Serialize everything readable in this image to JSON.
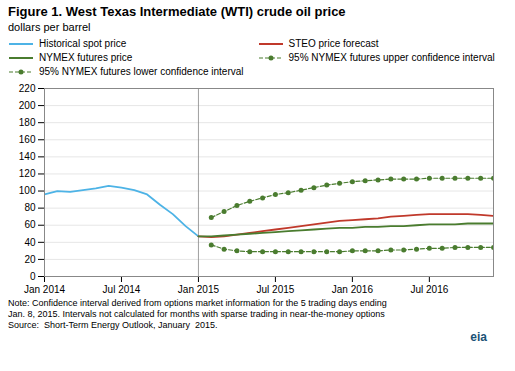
{
  "chart_data": {
    "type": "line",
    "title": "Figure 1. West Texas Intermediate (WTI) crude oil price",
    "subtitle": "dollars per barrel",
    "note": "Note: Confidence interval derived from options market information for the 5 trading days ending\nJan. 8, 2015. Intervals not calculated for months with sparse trading in near-the-money options\nSource:  Short-Term Energy Outlook, January  2015.",
    "annotations": [
      {
        "text": "eia",
        "color": "#1a5276"
      }
    ],
    "x": [
      0,
      1,
      2,
      3,
      4,
      5,
      6,
      7,
      8,
      9,
      10,
      11,
      12,
      13,
      14,
      15,
      16,
      17,
      18,
      19,
      20,
      21,
      22,
      23,
      24,
      25,
      26,
      27,
      28,
      29,
      30,
      31,
      32,
      33,
      34,
      35
    ],
    "series": [
      {
        "name": "Historical spot price",
        "color": "#4db3e6",
        "line_style": "solid",
        "values": [
          96,
          100,
          99,
          101,
          103,
          106,
          104,
          101,
          96,
          84,
          73,
          59,
          47,
          null,
          null,
          null,
          null,
          null,
          null,
          null,
          null,
          null,
          null,
          null,
          null,
          null,
          null,
          null,
          null,
          null,
          null,
          null,
          null,
          null,
          null,
          null
        ]
      },
      {
        "name": "STEO price forecast",
        "color": "#c0392b",
        "line_style": "solid",
        "values": [
          null,
          null,
          null,
          null,
          null,
          null,
          null,
          null,
          null,
          null,
          null,
          null,
          47,
          46,
          47,
          49,
          51,
          53,
          55,
          57,
          59,
          61,
          63,
          65,
          66,
          67,
          68,
          70,
          71,
          72,
          73,
          73,
          73,
          73,
          72,
          71
        ]
      },
      {
        "name": "NYMEX futures price",
        "color": "#4a7c2f",
        "line_style": "solid",
        "values": [
          null,
          null,
          null,
          null,
          null,
          null,
          null,
          null,
          null,
          null,
          null,
          null,
          47,
          47,
          48,
          49,
          50,
          51,
          52,
          53,
          54,
          55,
          56,
          57,
          57,
          58,
          58,
          59,
          59,
          60,
          61,
          61,
          61,
          62,
          62,
          62
        ]
      },
      {
        "name": "95% NYMEX futures upper confidence interval",
        "color": "#4a7c2f",
        "line_style": "dashed",
        "marker": "circle",
        "values": [
          null,
          null,
          null,
          null,
          null,
          null,
          null,
          null,
          null,
          null,
          null,
          null,
          null,
          69,
          76,
          83,
          88,
          92,
          96,
          98,
          101,
          104,
          107,
          109,
          111,
          112,
          113,
          114,
          114,
          114,
          115,
          115,
          115,
          115,
          115,
          115
        ]
      },
      {
        "name": "95% NYMEX futures lower confidence interval",
        "color": "#4a7c2f",
        "line_style": "dashed",
        "marker": "circle",
        "values": [
          null,
          null,
          null,
          null,
          null,
          null,
          null,
          null,
          null,
          null,
          null,
          null,
          null,
          37,
          32,
          30,
          29,
          29,
          29,
          29,
          29,
          29,
          29,
          29,
          30,
          30,
          30,
          31,
          31,
          32,
          33,
          33,
          34,
          34,
          34,
          34
        ]
      }
    ],
    "xlim": [
      0,
      35
    ],
    "xticks": [
      {
        "value": 0,
        "label": "Jan 2014"
      },
      {
        "value": 6,
        "label": "Jul 2014"
      },
      {
        "value": 12,
        "label": "Jan 2015"
      },
      {
        "value": 18,
        "label": "Jul 2015"
      },
      {
        "value": 24,
        "label": "Jan 2016"
      },
      {
        "value": 30,
        "label": "Jul 2016"
      }
    ],
    "ylim": [
      0,
      220
    ],
    "yticks": [
      0,
      20,
      40,
      60,
      80,
      100,
      120,
      140,
      160,
      180,
      200,
      220
    ],
    "vlines": [
      12
    ],
    "grid": true,
    "legend": "top"
  }
}
